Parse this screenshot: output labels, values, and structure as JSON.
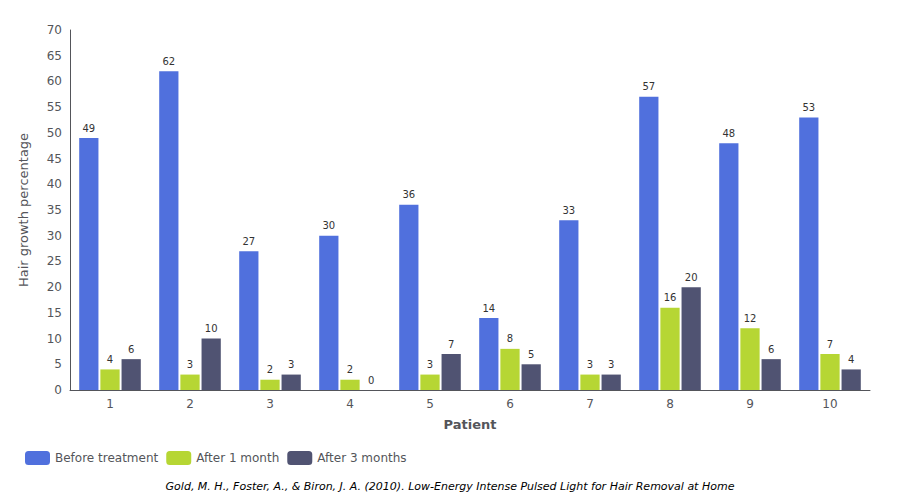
{
  "chart_data": {
    "type": "bar",
    "xlabel": "Patient",
    "ylabel": "Hair growth percentage",
    "categories": [
      1,
      2,
      3,
      4,
      5,
      6,
      7,
      8,
      9,
      10
    ],
    "series": [
      {
        "name": "Before treatment",
        "values": [
          49,
          62,
          27,
          30,
          36,
          14,
          33,
          57,
          48,
          53
        ]
      },
      {
        "name": "After 1 month",
        "values": [
          4,
          3,
          2,
          2,
          3,
          8,
          3,
          16,
          12,
          7
        ]
      },
      {
        "name": "After 3 months",
        "values": [
          6,
          10,
          3,
          0,
          7,
          5,
          3,
          20,
          6,
          4
        ]
      }
    ],
    "ylim": [
      0,
      70
    ],
    "yticks": [
      0,
      5,
      10,
      15,
      20,
      25,
      30,
      35,
      40,
      45,
      50,
      55,
      60,
      65,
      70
    ],
    "grid": false,
    "legend": "lower left",
    "data_labels": true,
    "annotations": [
      "Gold, M. H., Foster, A., & Biron, J. A. (2010). Low-Energy Intense Pulsed Light for Hair Removal at Home"
    ]
  }
}
